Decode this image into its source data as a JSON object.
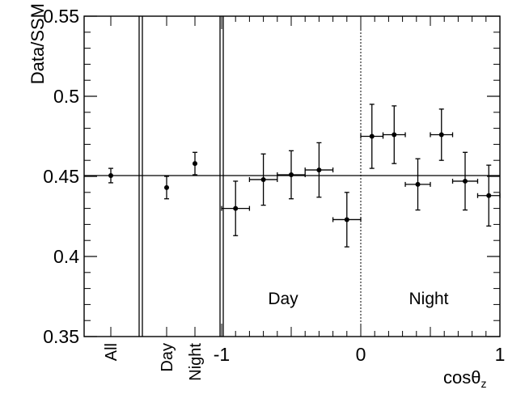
{
  "chart_data": {
    "type": "scatter",
    "title": "",
    "ylabel": "Data/SSM",
    "xlabel": "cosθ",
    "xlabel_subscript": "z",
    "ylim": [
      0.35,
      0.55
    ],
    "xlim": [
      -1,
      1
    ],
    "yticks": [
      "0.35",
      "0.4",
      "0.45",
      "0.5",
      "0.55"
    ],
    "xticks": [
      {
        "value": -1,
        "label": "-1"
      },
      {
        "value": 0,
        "label": "0"
      },
      {
        "value": 1,
        "label": "1"
      }
    ],
    "reference_line": 0.4505,
    "grid": false,
    "summary_points": [
      {
        "label": "All",
        "y": 0.4505,
        "err": 0.0045
      },
      {
        "label": "Day",
        "y": 0.443,
        "err": 0.007
      },
      {
        "label": "Night",
        "y": 0.458,
        "err": 0.007
      }
    ],
    "region_labels": [
      "Day",
      "Night"
    ],
    "series": [
      {
        "points": [
          {
            "x": -0.9,
            "xerr": 0.1,
            "y": 0.43,
            "err": 0.017
          },
          {
            "x": -0.7,
            "xerr": 0.1,
            "y": 0.448,
            "err": 0.016
          },
          {
            "x": -0.5,
            "xerr": 0.1,
            "y": 0.451,
            "err": 0.015
          },
          {
            "x": -0.3,
            "xerr": 0.1,
            "y": 0.454,
            "err": 0.017
          },
          {
            "x": -0.1,
            "xerr": 0.1,
            "y": 0.423,
            "err": 0.017
          },
          {
            "x": 0.08,
            "xerr": 0.08,
            "y": 0.475,
            "err": 0.02
          },
          {
            "x": 0.24,
            "xerr": 0.08,
            "y": 0.476,
            "err": 0.018
          },
          {
            "x": 0.41,
            "xerr": 0.09,
            "y": 0.445,
            "err": 0.016
          },
          {
            "x": 0.58,
            "xerr": 0.08,
            "y": 0.476,
            "err": 0.016
          },
          {
            "x": 0.75,
            "xerr": 0.09,
            "y": 0.447,
            "err": 0.018
          },
          {
            "x": 0.92,
            "xerr": 0.08,
            "y": 0.438,
            "err": 0.019
          }
        ]
      }
    ]
  }
}
